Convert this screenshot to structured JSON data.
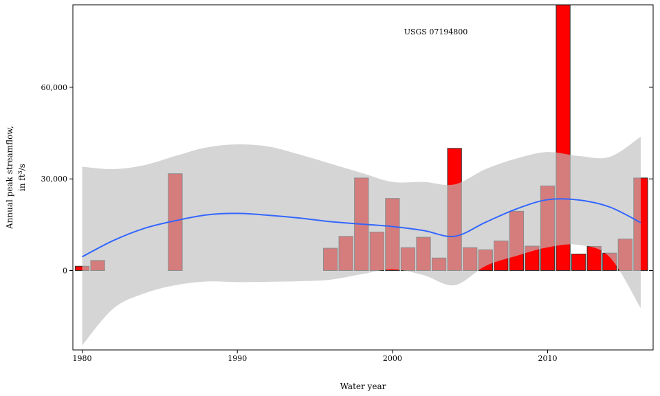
{
  "chart_data": {
    "type": "bar",
    "annotation": "USGS 07194800",
    "xlabel": "Water year",
    "ylabel_line1": "Annual peak streamflow,",
    "ylabel_line2_prefix": "in ft",
    "ylabel_line2_sup": "3",
    "ylabel_line2_suffix": "/s",
    "xlim": [
      1979.4,
      2016.8
    ],
    "ylim": [
      -26000,
      87000
    ],
    "xticks": [
      1980,
      1990,
      2000,
      2010
    ],
    "xtick_labels": [
      "1980",
      "1990",
      "2000",
      "2010"
    ],
    "yticks": [
      0,
      30000,
      60000
    ],
    "ytick_labels": [
      "0",
      "30,000",
      "60,000"
    ],
    "grid": false,
    "legend": "none",
    "bar_fill": "#FF0000",
    "bar_stroke": "#333333",
    "band_fill": "#BEBEBE",
    "smooth_color": "#3366FF",
    "bars": {
      "x": [
        1980,
        1981,
        1986,
        1996,
        1997,
        1998,
        1999,
        2000,
        2001,
        2002,
        2003,
        2004,
        2005,
        2006,
        2007,
        2008,
        2009,
        2010,
        2011,
        2012,
        2013,
        2014,
        2015,
        2016
      ],
      "values": [
        1400,
        3300,
        31700,
        7300,
        11200,
        30300,
        12600,
        23600,
        7500,
        10900,
        4100,
        40000,
        7500,
        6800,
        9700,
        19400,
        8000,
        27700,
        87000,
        5400,
        7900,
        5700,
        10300,
        30300
      ]
    },
    "smooth": {
      "x": [
        1980,
        1982,
        1984,
        1986,
        1988,
        1990,
        1992,
        1994,
        1996,
        1998,
        2000,
        2002,
        2004,
        2006,
        2008,
        2010,
        2012,
        2014,
        2016
      ],
      "y": [
        4500,
        9800,
        13800,
        16300,
        18200,
        18700,
        18100,
        17200,
        16000,
        15200,
        14400,
        13100,
        11200,
        15800,
        20200,
        23200,
        23100,
        20800,
        15700
      ],
      "upper": [
        34000,
        33200,
        34500,
        37500,
        40300,
        41300,
        40600,
        38000,
        35000,
        32000,
        29000,
        29000,
        28200,
        33200,
        36700,
        38800,
        37500,
        37200,
        43800
      ],
      "lower": [
        -24500,
        -12500,
        -7500,
        -4800,
        -3600,
        -3800,
        -3700,
        -3500,
        -3000,
        -1200,
        400,
        -1500,
        -4800,
        1500,
        4800,
        7600,
        8400,
        4400,
        -12300
      ]
    }
  }
}
